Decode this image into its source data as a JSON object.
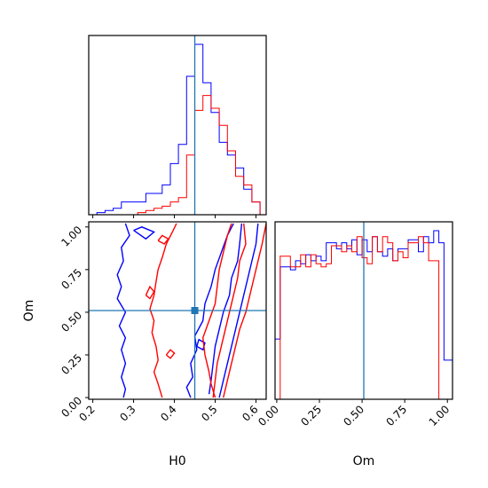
{
  "chart_data": {
    "type": "corner",
    "colors": {
      "red_series": "#ff0000",
      "blue_series": "#0000ff",
      "truth": "#1f77b4"
    },
    "truth": {
      "H0": 0.45,
      "Om": 0.51
    },
    "axes": {
      "H0": {
        "label": "H0",
        "range": [
          0.19,
          0.625
        ],
        "ticks": [
          0.2,
          0.3,
          0.4,
          0.5,
          0.6
        ],
        "tick_labels": [
          "0.2",
          "0.3",
          "0.4",
          "0.5",
          "0.6"
        ]
      },
      "Om": {
        "label": "Om",
        "range": [
          -0.01,
          1.03
        ],
        "ticks": [
          0.0,
          0.25,
          0.5,
          0.75,
          1.0
        ],
        "tick_labels": [
          "0.00",
          "0.25",
          "0.50",
          "0.75",
          "1.00"
        ]
      }
    },
    "hist_H0": {
      "bin_edges": [
        0.19,
        0.21,
        0.23,
        0.25,
        0.27,
        0.29,
        0.31,
        0.33,
        0.35,
        0.37,
        0.39,
        0.41,
        0.43,
        0.45,
        0.47,
        0.49,
        0.51,
        0.53,
        0.55,
        0.57,
        0.59,
        0.61
      ],
      "series": [
        {
          "color": "blue",
          "values": [
            0,
            1,
            2,
            3,
            6,
            6,
            6,
            10,
            10,
            14,
            24,
            33,
            65,
            80,
            62,
            48,
            34,
            28,
            22,
            12,
            6
          ]
        },
        {
          "color": "red",
          "values": [
            0,
            0,
            0,
            0,
            0,
            0,
            1,
            2,
            3,
            4,
            6,
            8,
            28,
            49,
            56,
            50,
            42,
            30,
            18,
            14,
            6
          ]
        }
      ]
    },
    "hist_Om": {
      "bin_edges": [
        -0.01,
        0.02,
        0.05,
        0.08,
        0.11,
        0.14,
        0.17,
        0.2,
        0.23,
        0.26,
        0.29,
        0.32,
        0.35,
        0.38,
        0.41,
        0.44,
        0.47,
        0.5,
        0.53,
        0.56,
        0.59,
        0.62,
        0.65,
        0.68,
        0.71,
        0.74,
        0.77,
        0.8,
        0.83,
        0.86,
        0.89,
        0.92,
        0.95,
        0.98,
        1.01,
        1.03
      ],
      "series": [
        {
          "color": "blue",
          "values": [
            40,
            88,
            88,
            86,
            92,
            90,
            96,
            92,
            95,
            92,
            104,
            104,
            100,
            104,
            100,
            106,
            96,
            106,
            98,
            108,
            98,
            95,
            100,
            92,
            100,
            100,
            106,
            106,
            98,
            108,
            104,
            112,
            104,
            26,
            26
          ]
        },
        {
          "color": "red",
          "values": [
            0,
            95,
            95,
            88,
            88,
            96,
            88,
            96,
            90,
            88,
            90,
            102,
            102,
            98,
            102,
            98,
            108,
            94,
            90,
            108,
            98,
            108,
            104,
            92,
            98,
            94,
            104,
            104,
            108,
            104,
            92,
            92,
            0,
            0,
            0
          ]
        }
      ]
    },
    "contours": [
      {
        "color": "blue",
        "lines": [
          [
            [
              0.28,
              1.02
            ],
            [
              0.29,
              0.95
            ],
            [
              0.27,
              0.88
            ],
            [
              0.275,
              0.8
            ],
            [
              0.26,
              0.72
            ],
            [
              0.27,
              0.65
            ],
            [
              0.26,
              0.58
            ],
            [
              0.28,
              0.5
            ],
            [
              0.265,
              0.42
            ],
            [
              0.28,
              0.35
            ],
            [
              0.27,
              0.28
            ],
            [
              0.28,
              0.2
            ],
            [
              0.27,
              0.12
            ],
            [
              0.28,
              0.05
            ],
            [
              0.275,
              0.0
            ]
          ],
          [
            [
              0.44,
              0.0
            ],
            [
              0.43,
              0.06
            ],
            [
              0.445,
              0.12
            ],
            [
              0.44,
              0.2
            ],
            [
              0.455,
              0.28
            ],
            [
              0.45,
              0.36
            ],
            [
              0.47,
              0.45
            ],
            [
              0.475,
              0.55
            ],
            [
              0.49,
              0.65
            ],
            [
              0.5,
              0.75
            ],
            [
              0.515,
              0.85
            ],
            [
              0.53,
              0.95
            ],
            [
              0.545,
              1.02
            ]
          ],
          [
            [
              0.3,
              0.98
            ],
            [
              0.32,
              1.0
            ],
            [
              0.35,
              0.97
            ],
            [
              0.33,
              0.93
            ],
            [
              0.3,
              0.98
            ]
          ],
          [
            [
              0.455,
              0.3
            ],
            [
              0.46,
              0.34
            ],
            [
              0.475,
              0.32
            ],
            [
              0.47,
              0.28
            ],
            [
              0.455,
              0.3
            ]
          ],
          [
            [
              0.565,
              1.02
            ],
            [
              0.56,
              0.9
            ],
            [
              0.555,
              0.8
            ],
            [
              0.54,
              0.7
            ],
            [
              0.535,
              0.6
            ],
            [
              0.52,
              0.5
            ],
            [
              0.51,
              0.4
            ],
            [
              0.5,
              0.3
            ],
            [
              0.495,
              0.2
            ],
            [
              0.49,
              0.1
            ],
            [
              0.485,
              0.02
            ]
          ],
          [
            [
              0.605,
              1.02
            ],
            [
              0.6,
              0.9
            ],
            [
              0.59,
              0.8
            ],
            [
              0.58,
              0.7
            ],
            [
              0.57,
              0.6
            ],
            [
              0.56,
              0.5
            ],
            [
              0.55,
              0.4
            ],
            [
              0.54,
              0.3
            ],
            [
              0.53,
              0.2
            ],
            [
              0.52,
              0.1
            ],
            [
              0.51,
              0.0
            ]
          ]
        ]
      },
      {
        "color": "red",
        "lines": [
          [
            [
              0.37,
              0.0
            ],
            [
              0.36,
              0.08
            ],
            [
              0.35,
              0.15
            ],
            [
              0.36,
              0.22
            ],
            [
              0.355,
              0.3
            ],
            [
              0.345,
              0.38
            ],
            [
              0.35,
              0.45
            ],
            [
              0.34,
              0.52
            ],
            [
              0.35,
              0.6
            ],
            [
              0.355,
              0.68
            ],
            [
              0.36,
              0.75
            ],
            [
              0.37,
              0.82
            ],
            [
              0.38,
              0.9
            ],
            [
              0.395,
              0.97
            ],
            [
              0.405,
              1.02
            ]
          ],
          [
            [
              0.5,
              0.0
            ],
            [
              0.49,
              0.08
            ],
            [
              0.485,
              0.15
            ],
            [
              0.475,
              0.25
            ],
            [
              0.47,
              0.35
            ],
            [
              0.485,
              0.45
            ],
            [
              0.5,
              0.55
            ],
            [
              0.505,
              0.65
            ],
            [
              0.51,
              0.75
            ],
            [
              0.52,
              0.85
            ],
            [
              0.53,
              0.95
            ],
            [
              0.54,
              1.02
            ]
          ],
          [
            [
              0.57,
              1.02
            ],
            [
              0.575,
              0.9
            ],
            [
              0.56,
              0.8
            ],
            [
              0.555,
              0.7
            ],
            [
              0.545,
              0.6
            ],
            [
              0.535,
              0.5
            ],
            [
              0.525,
              0.4
            ],
            [
              0.515,
              0.3
            ],
            [
              0.505,
              0.2
            ],
            [
              0.5,
              0.1
            ],
            [
              0.495,
              0.0
            ]
          ],
          [
            [
              0.625,
              1.02
            ],
            [
              0.615,
              0.9
            ],
            [
              0.605,
              0.8
            ],
            [
              0.595,
              0.7
            ],
            [
              0.585,
              0.6
            ],
            [
              0.575,
              0.5
            ],
            [
              0.56,
              0.4
            ],
            [
              0.55,
              0.3
            ],
            [
              0.54,
              0.2
            ],
            [
              0.53,
              0.1
            ],
            [
              0.52,
              0.0
            ]
          ],
          [
            [
              0.36,
              0.92
            ],
            [
              0.37,
              0.95
            ],
            [
              0.385,
              0.93
            ],
            [
              0.375,
              0.9
            ],
            [
              0.36,
              0.92
            ]
          ],
          [
            [
              0.33,
              0.6
            ],
            [
              0.34,
              0.65
            ],
            [
              0.35,
              0.62
            ],
            [
              0.34,
              0.58
            ],
            [
              0.33,
              0.6
            ]
          ],
          [
            [
              0.38,
              0.25
            ],
            [
              0.39,
              0.28
            ],
            [
              0.4,
              0.26
            ],
            [
              0.39,
              0.23
            ],
            [
              0.38,
              0.25
            ]
          ]
        ]
      }
    ]
  }
}
